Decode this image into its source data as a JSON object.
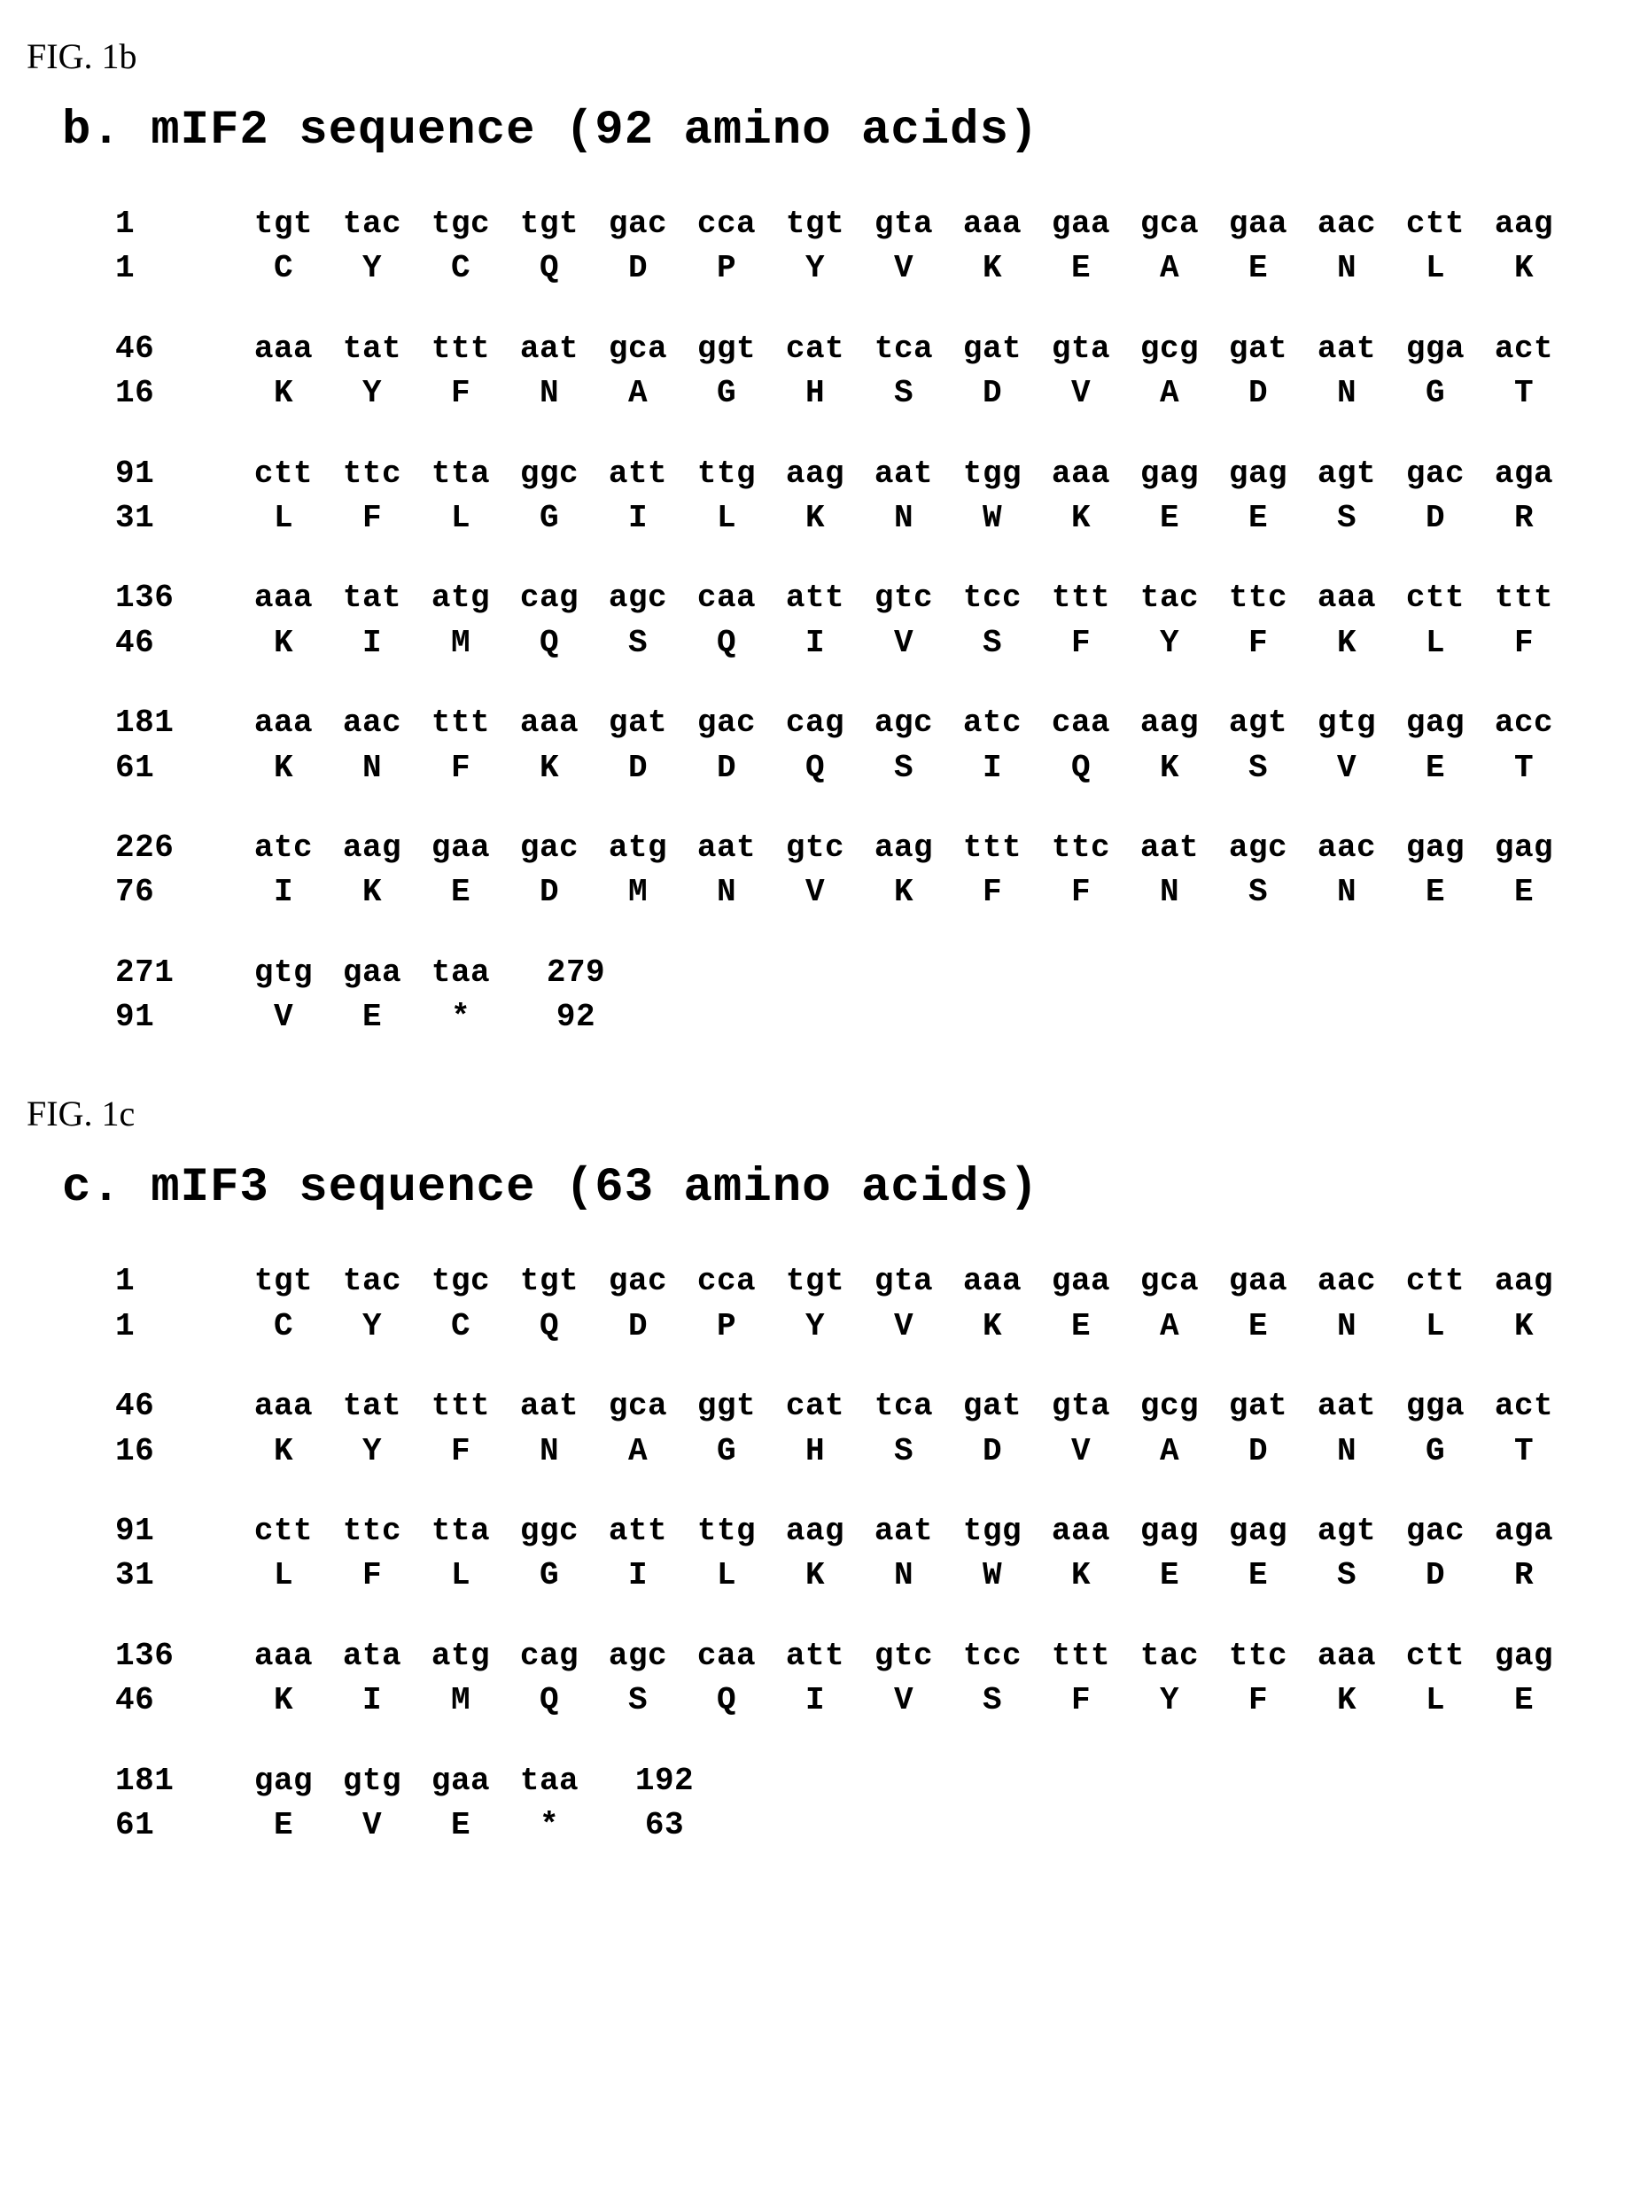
{
  "figures": [
    {
      "label": "FIG. 1b",
      "title": "b. mIF2 sequence (92 amino acids)",
      "lines": [
        {
          "nt_start": 1,
          "aa_start": 1,
          "nt_end": 45,
          "aa_end": 15,
          "codons": [
            "tgt",
            "tac",
            "tgc",
            "tgt",
            "gac",
            "cca",
            "tgt",
            "gta",
            "aaa",
            "gaa",
            "gca",
            "gaa",
            "aac",
            "ctt",
            "aag"
          ],
          "aa": [
            "C",
            "Y",
            "C",
            "Q",
            "D",
            "P",
            "Y",
            "V",
            "K",
            "E",
            "A",
            "E",
            "N",
            "L",
            "K"
          ]
        },
        {
          "nt_start": 46,
          "aa_start": 16,
          "nt_end": 90,
          "aa_end": 30,
          "codons": [
            "aaa",
            "tat",
            "ttt",
            "aat",
            "gca",
            "ggt",
            "cat",
            "tca",
            "gat",
            "gta",
            "gcg",
            "gat",
            "aat",
            "gga",
            "act"
          ],
          "aa": [
            "K",
            "Y",
            "F",
            "N",
            "A",
            "G",
            "H",
            "S",
            "D",
            "V",
            "A",
            "D",
            "N",
            "G",
            "T"
          ]
        },
        {
          "nt_start": 91,
          "aa_start": 31,
          "nt_end": 135,
          "aa_end": 45,
          "codons": [
            "ctt",
            "ttc",
            "tta",
            "ggc",
            "att",
            "ttg",
            "aag",
            "aat",
            "tgg",
            "aaa",
            "gag",
            "gag",
            "agt",
            "gac",
            "aga"
          ],
          "aa": [
            "L",
            "F",
            "L",
            "G",
            "I",
            "L",
            "K",
            "N",
            "W",
            "K",
            "E",
            "E",
            "S",
            "D",
            "R"
          ]
        },
        {
          "nt_start": 136,
          "aa_start": 46,
          "nt_end": 180,
          "aa_end": 60,
          "codons": [
            "aaa",
            "tat",
            "atg",
            "cag",
            "agc",
            "caa",
            "att",
            "gtc",
            "tcc",
            "ttt",
            "tac",
            "ttc",
            "aaa",
            "ctt",
            "ttt"
          ],
          "aa": [
            "K",
            "I",
            "M",
            "Q",
            "S",
            "Q",
            "I",
            "V",
            "S",
            "F",
            "Y",
            "F",
            "K",
            "L",
            "F"
          ]
        },
        {
          "nt_start": 181,
          "aa_start": 61,
          "nt_end": 225,
          "aa_end": 75,
          "codons": [
            "aaa",
            "aac",
            "ttt",
            "aaa",
            "gat",
            "gac",
            "cag",
            "agc",
            "atc",
            "caa",
            "aag",
            "agt",
            "gtg",
            "gag",
            "acc"
          ],
          "aa": [
            "K",
            "N",
            "F",
            "K",
            "D",
            "D",
            "Q",
            "S",
            "I",
            "Q",
            "K",
            "S",
            "V",
            "E",
            "T"
          ]
        },
        {
          "nt_start": 226,
          "aa_start": 76,
          "nt_end": 270,
          "aa_end": 90,
          "codons": [
            "atc",
            "aag",
            "gaa",
            "gac",
            "atg",
            "aat",
            "gtc",
            "aag",
            "ttt",
            "ttc",
            "aat",
            "agc",
            "aac",
            "gag",
            "gag"
          ],
          "aa": [
            "I",
            "K",
            "E",
            "D",
            "M",
            "N",
            "V",
            "K",
            "F",
            "F",
            "N",
            "S",
            "N",
            "E",
            "E"
          ]
        },
        {
          "nt_start": 271,
          "aa_start": 91,
          "nt_trail": 279,
          "aa_trail": 92,
          "codons": [
            "gtg",
            "gaa",
            "taa"
          ],
          "aa": [
            "V",
            "E",
            "*"
          ]
        }
      ]
    },
    {
      "label": "FIG. 1c",
      "title": "c. mIF3 sequence (63 amino acids)",
      "lines": [
        {
          "nt_start": 1,
          "aa_start": 1,
          "nt_end": 45,
          "aa_end": 15,
          "codons": [
            "tgt",
            "tac",
            "tgc",
            "tgt",
            "gac",
            "cca",
            "tgt",
            "gta",
            "aaa",
            "gaa",
            "gca",
            "gaa",
            "aac",
            "ctt",
            "aag"
          ],
          "aa": [
            "C",
            "Y",
            "C",
            "Q",
            "D",
            "P",
            "Y",
            "V",
            "K",
            "E",
            "A",
            "E",
            "N",
            "L",
            "K"
          ]
        },
        {
          "nt_start": 46,
          "aa_start": 16,
          "nt_end": 90,
          "aa_end": 30,
          "codons": [
            "aaa",
            "tat",
            "ttt",
            "aat",
            "gca",
            "ggt",
            "cat",
            "tca",
            "gat",
            "gta",
            "gcg",
            "gat",
            "aat",
            "gga",
            "act"
          ],
          "aa": [
            "K",
            "Y",
            "F",
            "N",
            "A",
            "G",
            "H",
            "S",
            "D",
            "V",
            "A",
            "D",
            "N",
            "G",
            "T"
          ]
        },
        {
          "nt_start": 91,
          "aa_start": 31,
          "nt_end": 135,
          "aa_end": 45,
          "codons": [
            "ctt",
            "ttc",
            "tta",
            "ggc",
            "att",
            "ttg",
            "aag",
            "aat",
            "tgg",
            "aaa",
            "gag",
            "gag",
            "agt",
            "gac",
            "aga"
          ],
          "aa": [
            "L",
            "F",
            "L",
            "G",
            "I",
            "L",
            "K",
            "N",
            "W",
            "K",
            "E",
            "E",
            "S",
            "D",
            "R"
          ]
        },
        {
          "nt_start": 136,
          "aa_start": 46,
          "nt_end": 180,
          "aa_end": 60,
          "codons": [
            "aaa",
            "ata",
            "atg",
            "cag",
            "agc",
            "caa",
            "att",
            "gtc",
            "tcc",
            "ttt",
            "tac",
            "ttc",
            "aaa",
            "ctt",
            "gag"
          ],
          "aa": [
            "K",
            "I",
            "M",
            "Q",
            "S",
            "Q",
            "I",
            "V",
            "S",
            "F",
            "Y",
            "F",
            "K",
            "L",
            "E"
          ]
        },
        {
          "nt_start": 181,
          "aa_start": 61,
          "nt_trail": 192,
          "aa_trail": 63,
          "codons": [
            "gag",
            "gtg",
            "gaa",
            "taa"
          ],
          "aa": [
            "E",
            "V",
            "E",
            "*"
          ]
        }
      ]
    }
  ]
}
